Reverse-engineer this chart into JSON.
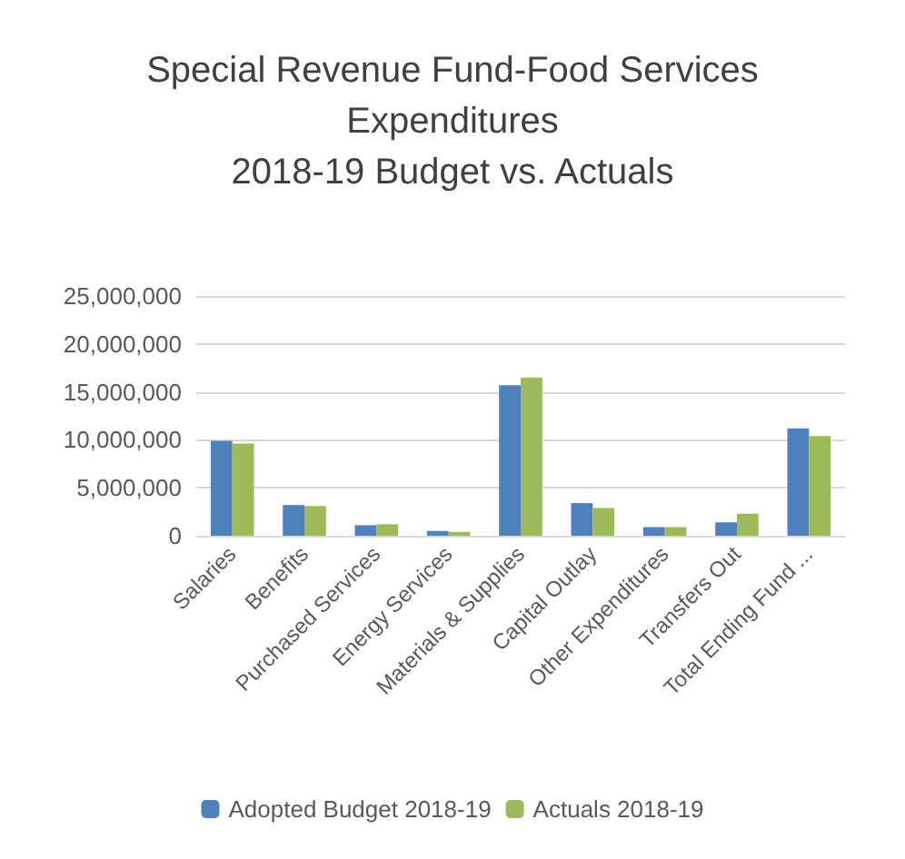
{
  "chart_data": {
    "type": "bar",
    "title": "Special Revenue Fund-Food Services\nExpenditures\n2018-19 Budget vs. Actuals",
    "categories": [
      "Salaries",
      "Benefits",
      "Purchased Services",
      "Energy Services",
      "Materials & Supplies",
      "Capital Outlay",
      "Other Expenditures",
      "Transfers Out",
      "Total Ending Fund ..."
    ],
    "series": [
      {
        "name": "Adopted Budget 2018-19",
        "color": "#4f81bd",
        "values": [
          9900000,
          3200000,
          1100000,
          500000,
          15700000,
          3400000,
          900000,
          1400000,
          11200000
        ]
      },
      {
        "name": "Actuals 2018-19",
        "color": "#9bbb59",
        "values": [
          9600000,
          3100000,
          1200000,
          400000,
          16500000,
          2900000,
          900000,
          2300000,
          10400000
        ]
      }
    ],
    "ylim": [
      0,
      25000000
    ],
    "yticks": [
      0,
      {
        "value": 5000000,
        "label": "5,000,000"
      },
      {
        "value": 10000000,
        "label": "10,000,000"
      },
      {
        "value": 15000000,
        "label": "15,000,000"
      },
      {
        "value": 20000000,
        "label": "20,000,000"
      },
      {
        "value": 25000000,
        "label": "25,000,000"
      }
    ],
    "grid": "y",
    "legend": "bottom"
  }
}
